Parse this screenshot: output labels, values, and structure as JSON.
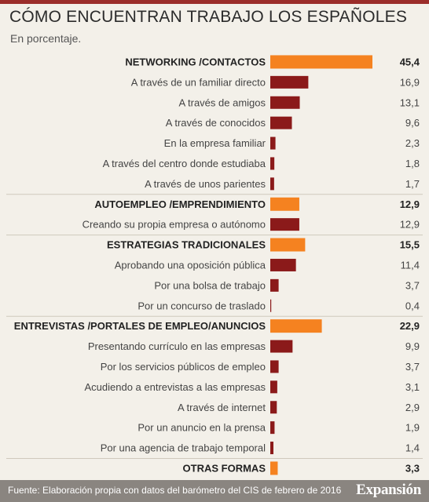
{
  "header": {
    "title": "CÓMO ENCUENTRAN TRABAJO LOS ESPAÑOLES",
    "subtitle": "En porcentaje."
  },
  "footer": {
    "source": "Fuente: Elaboración propia con datos del barómetro del CIS de febrero de 2016",
    "brand": "Expansión"
  },
  "colors": {
    "category_bar": "#f58220",
    "item_bar": "#8b1a1a",
    "background": "#f3f0e9",
    "footer": "#8a8580"
  },
  "chart_data": {
    "type": "bar",
    "orientation": "horizontal",
    "unit": "%",
    "categories": [
      "NETWORKING /CONTACTOS",
      "A través de un familiar directo",
      "A través de amigos",
      "A través de conocidos",
      "En la empresa familiar",
      "A través del centro donde estudiaba",
      "A través de unos parientes",
      "AUTOEMPLEO /EMPRENDIMIENTO",
      "Creando su propia empresa o autónomo",
      "ESTRATEGIAS TRADICIONALES",
      "Aprobando una oposición pública",
      "Por una bolsa de trabajo",
      "Por un concurso de traslado",
      "ENTREVISTAS /PORTALES DE EMPLEO/ANUNCIOS",
      "Presentando currículo en las empresas",
      "Por los servicios públicos de empleo",
      "Acudiendo a entrevistas a las empresas",
      "A través de internet",
      "Por un anuncio en la prensa",
      "Por una agencia de trabajo temporal",
      "OTRAS FORMAS"
    ],
    "values": [
      45.4,
      16.9,
      13.1,
      9.6,
      2.3,
      1.8,
      1.7,
      12.9,
      12.9,
      15.5,
      11.4,
      3.7,
      0.4,
      22.9,
      9.9,
      3.7,
      3.1,
      2.9,
      1.9,
      1.4,
      3.3
    ],
    "value_labels": [
      "45,4",
      "16,9",
      "13,1",
      "9,6",
      "2,3",
      "1,8",
      "1,7",
      "12,9",
      "12,9",
      "15,5",
      "11,4",
      "3,7",
      "0,4",
      "22,9",
      "9,9",
      "3,7",
      "3,1",
      "2,9",
      "1,9",
      "1,4",
      "3,3"
    ],
    "is_group_total": [
      true,
      false,
      false,
      false,
      false,
      false,
      false,
      true,
      false,
      true,
      false,
      false,
      false,
      true,
      false,
      false,
      false,
      false,
      false,
      false,
      true
    ],
    "xlim": [
      0,
      45.4
    ],
    "grid": false,
    "legend": "none"
  }
}
